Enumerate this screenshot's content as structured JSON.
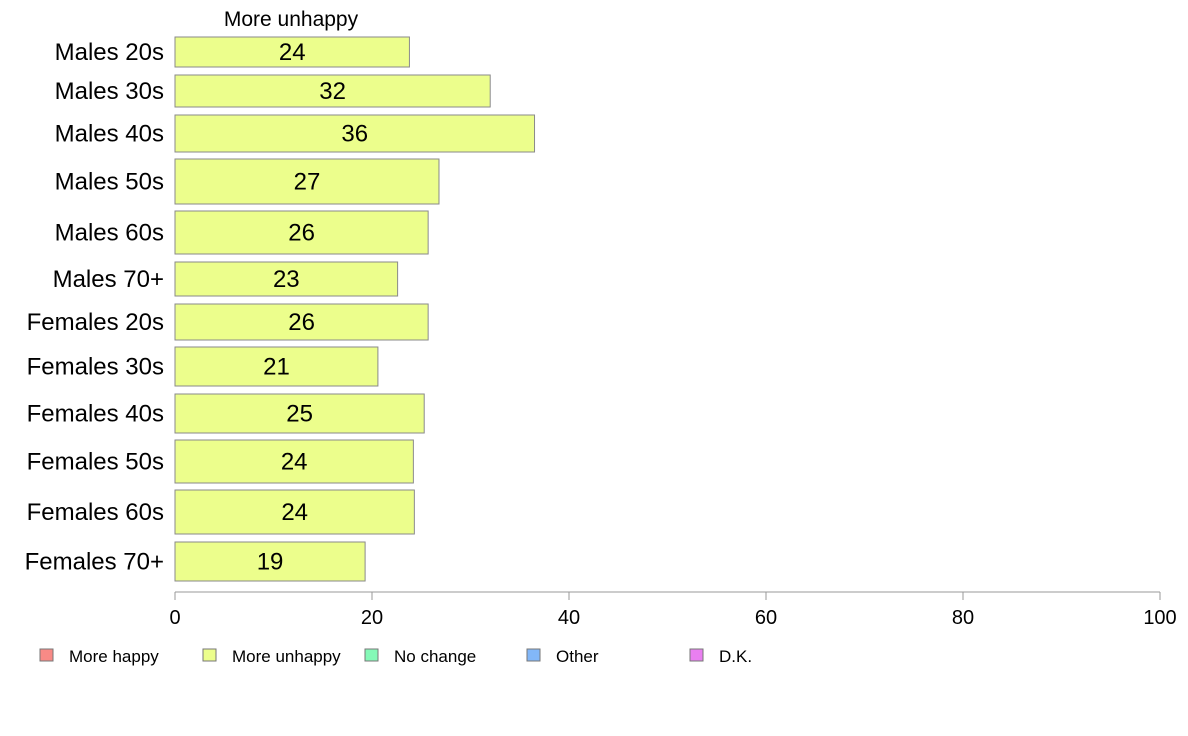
{
  "chart_data": {
    "type": "bar",
    "orientation": "horizontal",
    "panel_title": "More unhappy",
    "categories": [
      "Males 20s",
      "Males 30s",
      "Males 40s",
      "Males 50s",
      "Males 60s",
      "Males 70+",
      "Females 20s",
      "Females 30s",
      "Females 40s",
      "Females 50s",
      "Females 60s",
      "Females 70+"
    ],
    "series": [
      {
        "name": "More unhappy",
        "color": "#ecfe8c",
        "values": [
          23.8,
          32.0,
          36.5,
          26.8,
          25.7,
          22.6,
          25.7,
          20.6,
          25.3,
          24.2,
          24.3,
          19.3
        ],
        "labels": [
          "24",
          "32",
          "36",
          "27",
          "26",
          "23",
          "26",
          "21",
          "25",
          "24",
          "24",
          "19"
        ]
      }
    ],
    "xlim": [
      0,
      100
    ],
    "xticks": [
      "0",
      "20",
      "40",
      "60",
      "80",
      "100"
    ],
    "grid": false,
    "legend": {
      "position": "bottom",
      "items": [
        {
          "label": "More happy",
          "color": "#f88a86"
        },
        {
          "label": "More unhappy",
          "color": "#ecfe8c"
        },
        {
          "label": "No change",
          "color": "#84f9b7"
        },
        {
          "label": "Other",
          "color": "#82b7f8"
        },
        {
          "label": "D.K.",
          "color": "#e97ff0"
        }
      ]
    }
  }
}
